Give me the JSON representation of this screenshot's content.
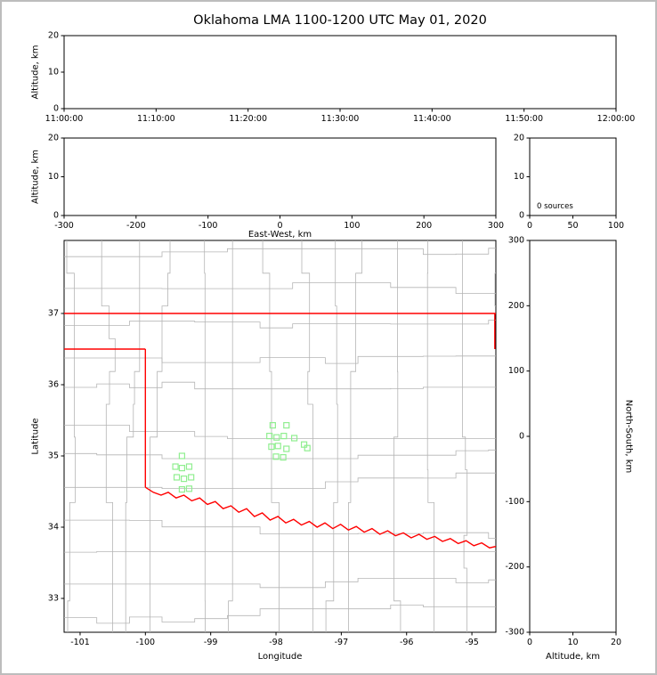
{
  "title": "Oklahoma LMA 1100-1200 UTC May 01, 2020",
  "colors": {
    "background": "#ffffff",
    "figure_border": "#bdbdbd",
    "axis": "#000000",
    "county_line": "#b5b5b5",
    "state_border": "#ff0000",
    "station_marker": "#90ee90"
  },
  "chart_data": [
    {
      "id": "time_height",
      "type": "scatter",
      "description": "altitude vs time panel, no sources plotted",
      "ylabel": "Altitude, km",
      "ylim": [
        0,
        20
      ],
      "yticks": [
        0,
        10,
        20
      ],
      "xtick_labels": [
        "11:00:00",
        "11:10:00",
        "11:20:00",
        "11:30:00",
        "11:40:00",
        "11:50:00",
        "12:00:00"
      ],
      "points": []
    },
    {
      "id": "ew_height",
      "type": "scatter",
      "description": "altitude vs east-west distance panel, no sources plotted",
      "xlabel": "East-West, km",
      "ylabel": "Altitude, km",
      "xlim": [
        -300,
        300
      ],
      "xticks": [
        -300,
        -200,
        -100,
        0,
        100,
        200,
        300
      ],
      "ylim": [
        0,
        20
      ],
      "yticks": [
        0,
        10,
        20
      ],
      "points": []
    },
    {
      "id": "histogram",
      "type": "line",
      "description": "source count histogram panel",
      "annotation": "0 sources",
      "sources_count": 0,
      "xlim": [
        0,
        100
      ],
      "xticks": [
        0,
        50,
        100
      ],
      "ylim": [
        0,
        20
      ],
      "yticks": [
        0,
        10,
        20
      ],
      "points": []
    },
    {
      "id": "plan_view",
      "type": "scatter",
      "description": "plan view map of Oklahoma with county lines, red state border, and LMA station markers",
      "xlabel": "Longitude",
      "ylabel": "Latitude",
      "xlim": [
        -101.245,
        -94.633
      ],
      "xticks": [
        -101,
        -100,
        -99,
        -98,
        -97,
        -96,
        -95
      ],
      "ylim": [
        32.525,
        38.025
      ],
      "yticks": [
        33,
        34,
        35,
        36,
        37
      ],
      "points": [],
      "stations": [
        [
          -98.05,
          35.43
        ],
        [
          -97.84,
          35.43
        ],
        [
          -98.1,
          35.28
        ],
        [
          -97.99,
          35.26
        ],
        [
          -97.88,
          35.28
        ],
        [
          -97.72,
          35.25
        ],
        [
          -98.07,
          35.13
        ],
        [
          -97.97,
          35.14
        ],
        [
          -97.84,
          35.1
        ],
        [
          -98.0,
          34.99
        ],
        [
          -97.89,
          34.98
        ],
        [
          -97.57,
          35.16
        ],
        [
          -97.52,
          35.11
        ],
        [
          -99.44,
          35.0
        ],
        [
          -99.54,
          34.85
        ],
        [
          -99.44,
          34.83
        ],
        [
          -99.33,
          34.85
        ],
        [
          -99.52,
          34.7
        ],
        [
          -99.41,
          34.68
        ],
        [
          -99.3,
          34.7
        ],
        [
          -99.44,
          34.53
        ],
        [
          -99.33,
          34.54
        ]
      ],
      "state_border": [
        [
          [
            -101.245,
            37.0
          ],
          [
            -94.633,
            37.0
          ]
        ],
        [
          [
            -101.245,
            36.5
          ],
          [
            -100.0,
            36.5
          ]
        ],
        [
          [
            -100.0,
            36.5
          ],
          [
            -100.0,
            34.56
          ]
        ],
        [
          [
            -94.65,
            37.0
          ],
          [
            -94.65,
            36.5
          ]
        ],
        [
          [
            -100.0,
            34.56
          ],
          [
            -99.88,
            34.49
          ],
          [
            -99.76,
            34.45
          ],
          [
            -99.65,
            34.49
          ],
          [
            -99.53,
            34.41
          ],
          [
            -99.41,
            34.45
          ],
          [
            -99.29,
            34.37
          ],
          [
            -99.17,
            34.41
          ],
          [
            -99.05,
            34.32
          ],
          [
            -98.93,
            34.36
          ],
          [
            -98.81,
            34.26
          ],
          [
            -98.69,
            34.3
          ],
          [
            -98.57,
            34.21
          ],
          [
            -98.45,
            34.26
          ],
          [
            -98.33,
            34.15
          ],
          [
            -98.21,
            34.2
          ],
          [
            -98.09,
            34.1
          ],
          [
            -97.97,
            34.15
          ],
          [
            -97.85,
            34.06
          ],
          [
            -97.73,
            34.11
          ],
          [
            -97.61,
            34.03
          ],
          [
            -97.49,
            34.08
          ],
          [
            -97.37,
            34.0
          ],
          [
            -97.25,
            34.06
          ],
          [
            -97.13,
            33.98
          ],
          [
            -97.01,
            34.04
          ],
          [
            -96.89,
            33.96
          ],
          [
            -96.77,
            34.01
          ],
          [
            -96.65,
            33.93
          ],
          [
            -96.53,
            33.98
          ],
          [
            -96.41,
            33.9
          ],
          [
            -96.29,
            33.95
          ],
          [
            -96.17,
            33.88
          ],
          [
            -96.05,
            33.92
          ],
          [
            -95.93,
            33.85
          ],
          [
            -95.81,
            33.9
          ],
          [
            -95.69,
            33.83
          ],
          [
            -95.57,
            33.87
          ],
          [
            -95.45,
            33.8
          ],
          [
            -95.33,
            33.84
          ],
          [
            -95.21,
            33.77
          ],
          [
            -95.09,
            33.81
          ],
          [
            -94.97,
            33.74
          ],
          [
            -94.85,
            33.78
          ],
          [
            -94.73,
            33.71
          ],
          [
            -94.63,
            33.73
          ]
        ]
      ]
    },
    {
      "id": "ns_height",
      "type": "scatter",
      "description": "north-south distance vs altitude panel, no sources plotted",
      "xlabel": "Altitude, km",
      "ylabel_right": "North-South, km",
      "xlim": [
        0,
        20
      ],
      "xticks": [
        0,
        10,
        20
      ],
      "ylim": [
        -300,
        300
      ],
      "yticks": [
        -300,
        -200,
        -100,
        0,
        100,
        200,
        300
      ],
      "points": []
    }
  ],
  "map": {
    "county_grid": {
      "lon_step": 0.5,
      "lat_step": 0.46,
      "seed": 7
    }
  }
}
